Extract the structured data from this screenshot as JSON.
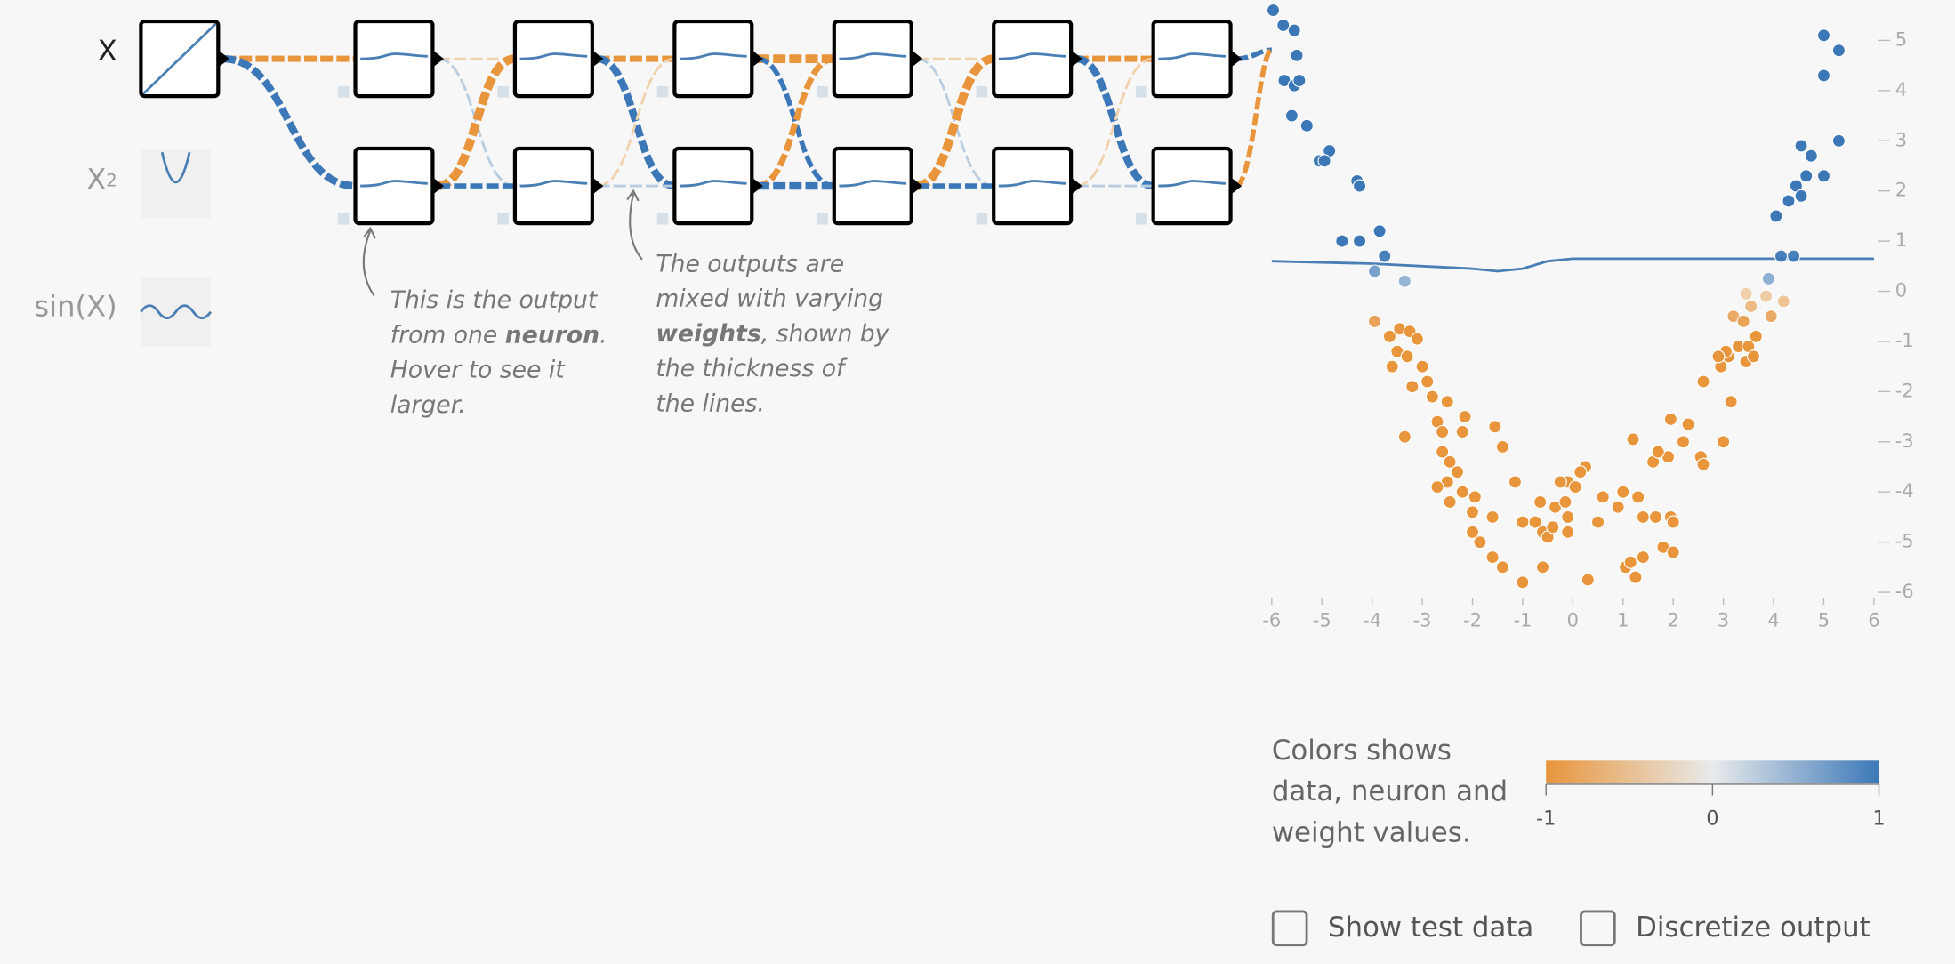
{
  "inputs": [
    {
      "label": "X"
    },
    {
      "label": "X",
      "sup": "2"
    },
    {
      "label": "sin(X)"
    }
  ],
  "annotations": [
    {
      "lines": [
        [
          {
            "text": "This is the output"
          }
        ],
        [
          {
            "text": "from one "
          },
          {
            "text": "neuron",
            "bold": true
          },
          {
            "text": "."
          }
        ],
        [
          {
            "text": "Hover to see it"
          }
        ],
        [
          {
            "text": "larger."
          }
        ]
      ]
    },
    {
      "lines": [
        [
          {
            "text": "The outputs are"
          }
        ],
        [
          {
            "text": "mixed with varying"
          }
        ],
        [
          {
            "text": "weights",
            "bold": true
          },
          {
            "text": ", shown by"
          }
        ],
        [
          {
            "text": "the thickness of"
          }
        ],
        [
          {
            "text": "the lines."
          }
        ]
      ]
    }
  ],
  "legend": {
    "lines": [
      "Colors shows",
      "data, neuron and",
      "weight values."
    ],
    "ticks": [
      -1,
      0,
      1
    ],
    "colors": [
      "#e8953b",
      "#e8eaeb",
      "#3c78b8"
    ]
  },
  "controls": [
    "Show test data",
    "Discretize output"
  ],
  "chart_data": {
    "type": "scatter",
    "xlim": [
      -6,
      6
    ],
    "ylim": [
      -6,
      6
    ],
    "xticks": [
      -6,
      -5,
      -4,
      -3,
      -2,
      -1,
      0,
      1,
      2,
      3,
      4,
      5,
      6
    ],
    "yticks": [
      -6,
      -5,
      -4,
      -3,
      -2,
      -1,
      0,
      1,
      2,
      3,
      4,
      5
    ],
    "series": [
      {
        "color": "#3c78b8",
        "x": [
          -5.97,
          -5.77,
          -5.55,
          -5.5,
          -5.75,
          -5.55,
          -5.45,
          -5.6,
          -5.3,
          -5.05,
          -4.85,
          -4.95,
          -4.3,
          -4.25,
          -4.6,
          -4.25,
          -3.85,
          -3.75,
          -3.95,
          -3.35,
          5.0,
          5.3,
          5.0,
          5.3,
          4.55,
          4.75,
          4.65,
          5.0,
          4.45,
          4.3,
          4.55,
          4.05,
          4.15,
          4.4,
          3.9
        ],
        "values": [
          5.6,
          5.3,
          5.2,
          4.7,
          4.2,
          4.1,
          4.2,
          3.5,
          3.3,
          2.6,
          2.8,
          2.6,
          2.2,
          2.1,
          1.0,
          1.0,
          1.2,
          0.7,
          0.4,
          0.2,
          5.1,
          4.8,
          4.3,
          3.0,
          2.9,
          2.7,
          2.3,
          2.3,
          2.1,
          1.8,
          1.9,
          1.5,
          0.7,
          0.7,
          0.25
        ]
      },
      {
        "color": "#e8953b",
        "x": [
          -3.95,
          -3.45,
          -3.65,
          -3.25,
          -3.1,
          -3.5,
          -3.3,
          -3.6,
          -3.0,
          -2.9,
          -3.2,
          -2.8,
          -2.5,
          -2.15,
          -2.7,
          -3.35,
          -2.6,
          -2.2,
          -1.55,
          -1.4,
          -2.6,
          -2.45,
          -2.3,
          -2.5,
          -1.15,
          -2.7,
          -2.2,
          -1.95,
          -2.45,
          -2.0,
          -1.6,
          -1.0,
          -0.65,
          -0.75,
          -0.6,
          -0.5,
          -0.4,
          -0.1,
          -0.35,
          -0.1,
          -0.25,
          -0.15,
          0.25,
          0.15,
          0.05,
          -0.1,
          0.6,
          0.5,
          0.9,
          1.0,
          1.4,
          1.3,
          1.65,
          1.95,
          2.0,
          1.8,
          2.0,
          1.4,
          1.05,
          1.15,
          1.25,
          0.3,
          -0.6,
          -1.0,
          -1.4,
          -1.6,
          -1.85,
          -2.0,
          2.2,
          1.9,
          1.6,
          1.7,
          1.2,
          1.95,
          2.3,
          2.55,
          2.6,
          3.0,
          3.15,
          2.6,
          2.95,
          3.1,
          3.3,
          3.45,
          3.5,
          3.6,
          3.65,
          3.05,
          2.9,
          3.2,
          3.4,
          3.55,
          3.95,
          4.2,
          3.85,
          3.45
        ],
        "values": [
          -0.6,
          -0.75,
          -0.9,
          -0.8,
          -0.95,
          -1.2,
          -1.3,
          -1.5,
          -1.5,
          -1.8,
          -1.9,
          -2.1,
          -2.2,
          -2.5,
          -2.6,
          -2.9,
          -2.8,
          -2.8,
          -2.7,
          -3.1,
          -3.2,
          -3.4,
          -3.6,
          -3.8,
          -3.8,
          -3.9,
          -4.0,
          -4.1,
          -4.2,
          -4.4,
          -4.5,
          -4.6,
          -4.2,
          -4.6,
          -4.8,
          -4.9,
          -4.7,
          -4.5,
          -4.3,
          -3.8,
          -3.8,
          -4.2,
          -3.5,
          -3.6,
          -3.9,
          -4.8,
          -4.1,
          -4.6,
          -4.3,
          -4.0,
          -4.5,
          -4.1,
          -4.5,
          -4.5,
          -4.6,
          -5.1,
          -5.2,
          -5.3,
          -5.5,
          -5.4,
          -5.7,
          -5.75,
          -5.5,
          -5.8,
          -5.5,
          -5.3,
          -5.0,
          -4.8,
          -3.0,
          -3.3,
          -3.4,
          -3.2,
          -2.95,
          -2.55,
          -2.65,
          -3.3,
          -3.45,
          -3.0,
          -2.2,
          -1.8,
          -1.5,
          -1.3,
          -1.1,
          -1.4,
          -1.1,
          -1.3,
          -0.9,
          -1.2,
          -1.3,
          -0.5,
          -0.6,
          -0.3,
          -0.5,
          -0.2,
          -0.1,
          -0.05
        ]
      }
    ],
    "curve": {
      "color": "#4a7fb5",
      "x": [
        -6,
        -4,
        -3,
        -2,
        -1.5,
        -1,
        -0.5,
        0,
        1,
        6
      ],
      "values": [
        0.6,
        0.55,
        0.5,
        0.45,
        0.4,
        0.45,
        0.6,
        0.65,
        0.65,
        0.65
      ]
    }
  }
}
